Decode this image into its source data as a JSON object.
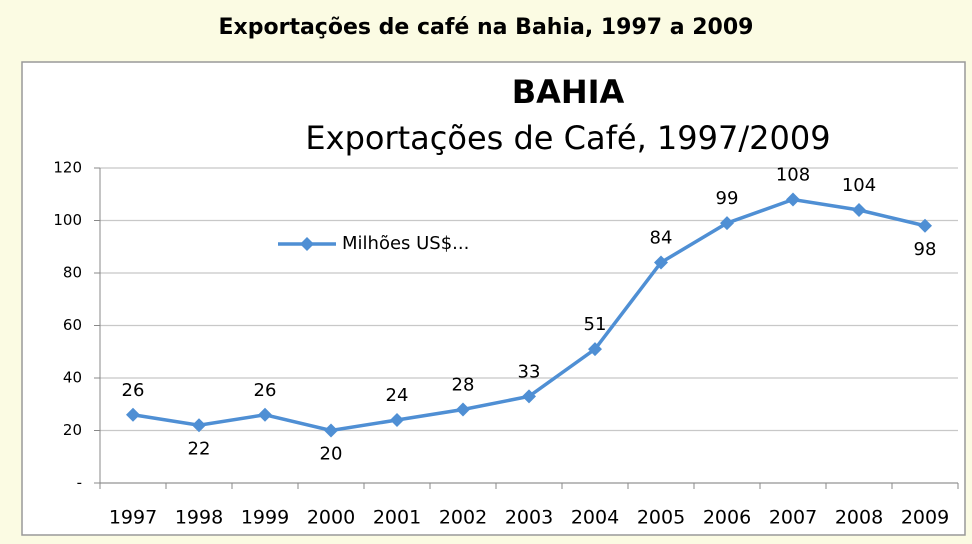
{
  "header": {
    "title": "Exportações de café na Bahia, 1997 a 2009"
  },
  "chart_data": {
    "type": "line",
    "title": "BAHIA",
    "subtitle": "Exportações de Café, 1997/2009",
    "categories": [
      "1997",
      "1998",
      "1999",
      "2000",
      "2001",
      "2002",
      "2003",
      "2004",
      "2005",
      "2006",
      "2007",
      "2008",
      "2009"
    ],
    "series": [
      {
        "name": "Milhões US$...",
        "color": "#4f8fd4",
        "values": [
          26,
          22,
          26,
          20,
          24,
          28,
          33,
          51,
          84,
          99,
          108,
          104,
          98
        ]
      }
    ],
    "ylim": [
      0,
      120
    ],
    "yticks": [
      {
        "value": 0,
        "label": "-"
      },
      20,
      40,
      60,
      80,
      100,
      120
    ],
    "grid": true,
    "legend": "left"
  }
}
